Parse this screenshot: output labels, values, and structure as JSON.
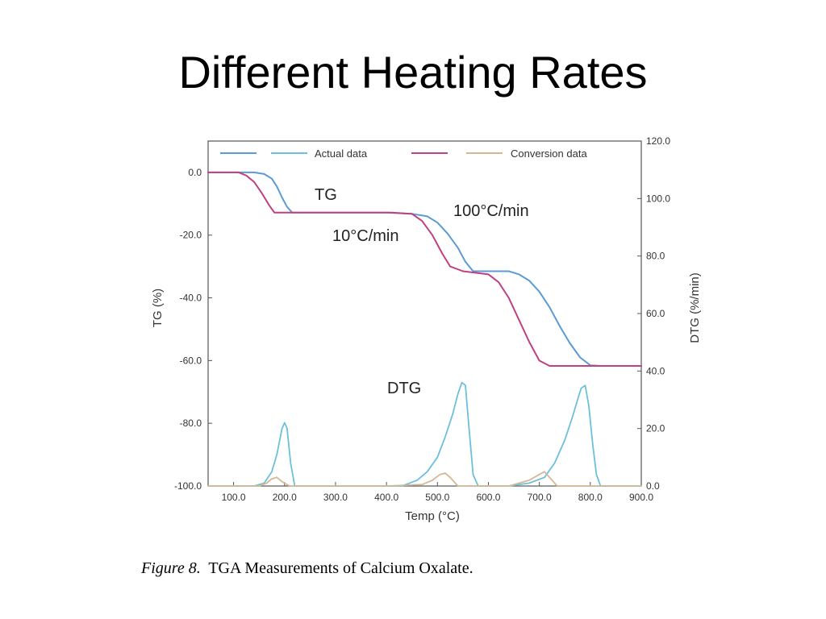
{
  "slide": {
    "title": "Different Heating Rates"
  },
  "caption": {
    "label": "Figure 8.",
    "text": "TGA Measurements of Calcium Oxalate."
  },
  "colors": {
    "actual_100": "#5b9bd5",
    "actual_10": "#c04080",
    "conversion": "#d4b896",
    "dtg": "#6cc0dc",
    "frame": "#555555"
  },
  "chart_data": {
    "type": "line",
    "xlabel": "Temp (°C)",
    "ylabel": "TG (%)",
    "y2label": "DTG (%/min)",
    "xlim": [
      50,
      900
    ],
    "ylim": [
      -100,
      10
    ],
    "y2lim": [
      0,
      120
    ],
    "xticks": [
      "100.0",
      "200.0",
      "300.0",
      "400.0",
      "500.0",
      "600.0",
      "700.0",
      "800.0",
      "900.0"
    ],
    "yticks": [
      "0.0",
      "-20.0",
      "-40.0",
      "-60.0",
      "-80.0",
      "-100.0"
    ],
    "y2ticks": [
      "120.0",
      "100.0",
      "80.0",
      "60.0",
      "40.0",
      "20.0",
      "0.0"
    ],
    "legend": [
      "Actual data",
      "Conversion data"
    ],
    "legend_position": "top",
    "annotations": [
      "TG",
      "100°C/min",
      "10°C/min",
      "DTG"
    ],
    "series": [
      {
        "name": "Actual data",
        "axis": "TG",
        "rate": "100°C/min",
        "x": [
          50,
          140,
          160,
          175,
          185,
          195,
          205,
          215,
          300,
          400,
          450,
          480,
          500,
          520,
          540,
          555,
          570,
          600,
          640,
          660,
          680,
          700,
          720,
          740,
          760,
          780,
          800,
          820,
          900
        ],
        "y": [
          0,
          0,
          -0.5,
          -2,
          -4.5,
          -8,
          -11,
          -12.8,
          -12.8,
          -12.8,
          -13.2,
          -14,
          -16,
          -19.5,
          -24,
          -28.5,
          -31.5,
          -31.5,
          -31.5,
          -32.5,
          -34.5,
          -38,
          -43,
          -49,
          -54.5,
          -59,
          -61.5,
          -61.7,
          -61.7
        ]
      },
      {
        "name": "",
        "axis": "TG",
        "rate": "10°C/min",
        "x": [
          50,
          110,
          125,
          140,
          155,
          170,
          180,
          300,
          410,
          450,
          470,
          490,
          510,
          525,
          550,
          600,
          620,
          640,
          660,
          680,
          700,
          720,
          900
        ],
        "y": [
          0,
          0,
          -1,
          -3,
          -6.5,
          -10.5,
          -12.8,
          -12.8,
          -12.8,
          -13.2,
          -15.5,
          -20,
          -26,
          -30,
          -31.5,
          -32.5,
          -35,
          -40,
          -47,
          -54,
          -60,
          -61.7,
          -61.7
        ]
      },
      {
        "name": "",
        "axis": "DTG",
        "rate": "100°C/min",
        "x": [
          50,
          140,
          160,
          175,
          185,
          195,
          200,
          205,
          212,
          220,
          300,
          430,
          460,
          480,
          500,
          515,
          530,
          540,
          548,
          555,
          562,
          570,
          580,
          600,
          640,
          680,
          710,
          730,
          750,
          765,
          775,
          782,
          790,
          797,
          805,
          812,
          820,
          900
        ],
        "y": [
          0,
          0,
          1,
          5,
          11,
          20,
          22,
          20,
          8,
          0,
          0,
          0,
          2,
          5,
          10,
          17,
          25,
          32,
          36,
          35,
          20,
          4,
          0,
          0,
          0,
          1,
          3,
          8,
          16,
          24,
          30,
          34,
          35,
          28,
          14,
          4,
          0,
          0
        ]
      },
      {
        "name": "Conversion data",
        "axis": "DTG",
        "rate": "10°C/min",
        "x": [
          50,
          150,
          165,
          175,
          185,
          195,
          210,
          400,
          470,
          490,
          505,
          515,
          525,
          540,
          640,
          680,
          700,
          710,
          720,
          735,
          900
        ],
        "y": [
          0,
          0,
          1,
          2.5,
          3,
          1.5,
          0,
          0,
          0.5,
          2,
          4,
          4.5,
          3,
          0,
          0,
          2,
          4,
          5,
          3,
          0,
          0
        ]
      }
    ]
  }
}
